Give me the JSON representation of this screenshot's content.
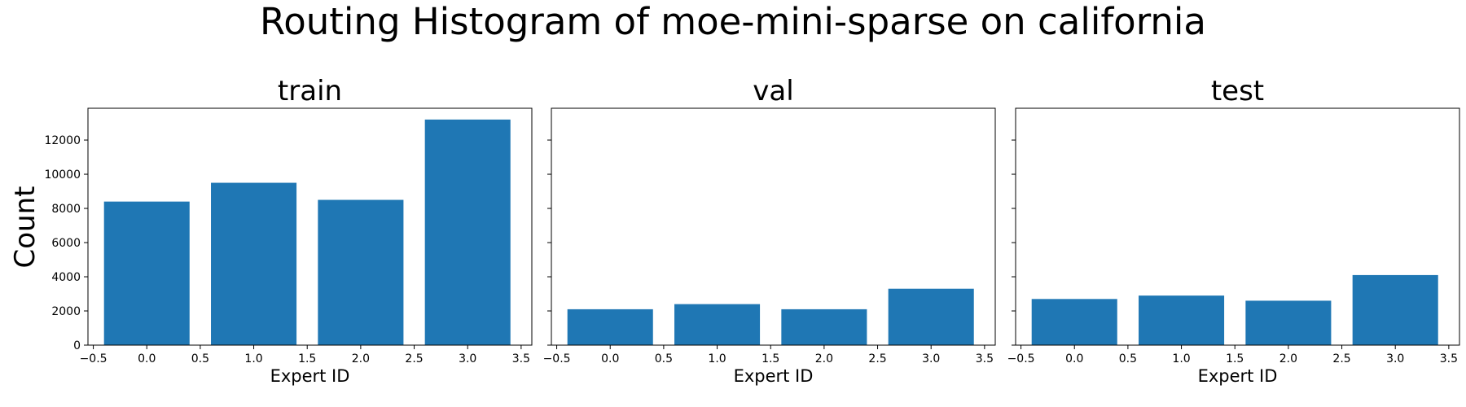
{
  "title": "Routing Histogram of moe-mini-sparse on california",
  "ylabel": "Count",
  "bar_color": "#1f77b4",
  "chart_data": [
    {
      "type": "bar",
      "title": "train",
      "xlabel": "Expert ID",
      "x": [
        0,
        1,
        2,
        3
      ],
      "values": [
        8400,
        9500,
        8500,
        13200
      ],
      "xlim": [
        -0.55,
        3.6
      ],
      "ylim": [
        0,
        13860
      ],
      "xticks": [
        -0.5,
        0.0,
        0.5,
        1.0,
        1.5,
        2.0,
        2.5,
        3.0,
        3.5
      ],
      "xtick_labels": [
        "−0.5",
        "0.0",
        "0.5",
        "1.0",
        "1.5",
        "2.0",
        "2.5",
        "3.0",
        "3.5"
      ],
      "yticks": [
        0,
        2000,
        4000,
        6000,
        8000,
        10000,
        12000
      ],
      "ytick_labels": [
        "0",
        "2000",
        "4000",
        "6000",
        "8000",
        "10000",
        "12000"
      ],
      "grid": false
    },
    {
      "type": "bar",
      "title": "val",
      "xlabel": "Expert ID",
      "x": [
        0,
        1,
        2,
        3
      ],
      "values": [
        2100,
        2400,
        2100,
        3300
      ],
      "xlim": [
        -0.55,
        3.6
      ],
      "ylim": [
        0,
        13860
      ],
      "xticks": [
        -0.5,
        0.0,
        0.5,
        1.0,
        1.5,
        2.0,
        2.5,
        3.0,
        3.5
      ],
      "xtick_labels": [
        "−0.5",
        "0.0",
        "0.5",
        "1.0",
        "1.5",
        "2.0",
        "2.5",
        "3.0",
        "3.5"
      ],
      "yticks": [
        0,
        2000,
        4000,
        6000,
        8000,
        10000,
        12000
      ],
      "ytick_labels": [],
      "grid": false
    },
    {
      "type": "bar",
      "title": "test",
      "xlabel": "Expert ID",
      "x": [
        0,
        1,
        2,
        3
      ],
      "values": [
        2700,
        2900,
        2600,
        4100
      ],
      "xlim": [
        -0.55,
        3.6
      ],
      "ylim": [
        0,
        13860
      ],
      "xticks": [
        -0.5,
        0.0,
        0.5,
        1.0,
        1.5,
        2.0,
        2.5,
        3.0,
        3.5
      ],
      "xtick_labels": [
        "−0.5",
        "0.0",
        "0.5",
        "1.0",
        "1.5",
        "2.0",
        "2.5",
        "3.0",
        "3.5"
      ],
      "yticks": [
        0,
        2000,
        4000,
        6000,
        8000,
        10000,
        12000
      ],
      "ytick_labels": [],
      "grid": false
    }
  ]
}
